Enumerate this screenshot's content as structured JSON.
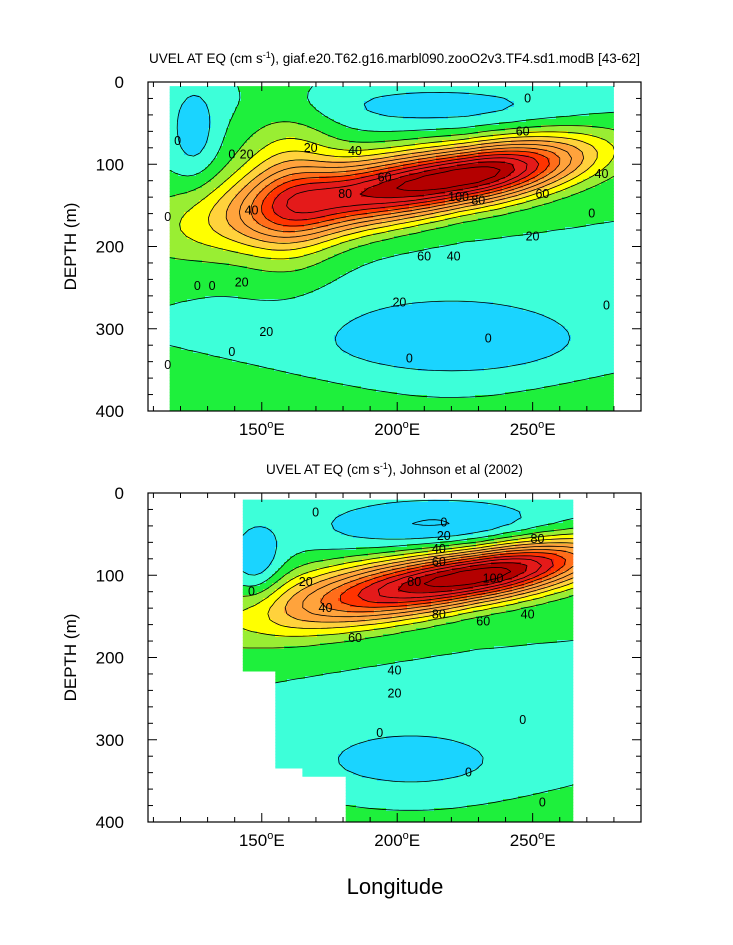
{
  "figure": {
    "xlabel": "Longitude"
  },
  "palette": [
    {
      "level": "-20..-10",
      "color": "#1ad4ff"
    },
    {
      "level": "-10..0",
      "color": "#3dffd9"
    },
    {
      "level": "0..10",
      "color": "#1ef03c"
    },
    {
      "level": "10..20",
      "color": "#99ee33"
    },
    {
      "level": "20..30",
      "color": "#ffff00"
    },
    {
      "level": "30..40",
      "color": "#ffd23c"
    },
    {
      "level": "40..60",
      "color": "#ffa33c"
    },
    {
      "level": "60..70",
      "color": "#ff6d1a"
    },
    {
      "level": "70..80",
      "color": "#ff3300"
    },
    {
      "level": "80..100",
      "color": "#e41a1a"
    },
    {
      "level": "100..120",
      "color": "#b40000"
    }
  ],
  "chart_data": [
    {
      "type": "contour",
      "title_prefix": "UVEL AT EQ (cm s",
      "title_exp": "-1",
      "title_suffix": "), giaf.e20.T62.g16.marbl090.zooO2v3.TF4.sd1.modB [43-62]",
      "xlabel": "",
      "ylabel": "DEPTH (m)",
      "xlim": [
        108,
        290
      ],
      "ylim": [
        400,
        0
      ],
      "x_ticks": [
        150,
        200,
        250
      ],
      "x_tick_labels": [
        "150°E",
        "200°E",
        "250°E"
      ],
      "y_ticks": [
        0,
        100,
        200,
        300,
        400
      ],
      "y_tick_labels": [
        "0",
        "100",
        "200",
        "300",
        "400"
      ],
      "data_x_range": [
        116,
        280
      ],
      "data_y_range": [
        5,
        400
      ],
      "contour_labels": [
        "0",
        "0",
        "0",
        "0",
        "0",
        "0",
        "0",
        "0",
        "0",
        "0",
        "0",
        "0",
        "20",
        "20",
        "20",
        "20",
        "20",
        "20",
        "40",
        "40",
        "40",
        "40",
        "60",
        "60",
        "60",
        "60",
        "80",
        "80",
        "100"
      ],
      "core": {
        "x": 225,
        "depth": 115,
        "max": 110
      }
    },
    {
      "type": "contour",
      "title_prefix": "UVEL AT EQ (cm s",
      "title_exp": "-1",
      "title_suffix": "), Johnson et al (2002)",
      "xlabel": "Longitude",
      "ylabel": "DEPTH (m)",
      "xlim": [
        108,
        290
      ],
      "ylim": [
        400,
        0
      ],
      "x_ticks": [
        150,
        200,
        250
      ],
      "x_tick_labels": [
        "150°E",
        "200°E",
        "250°E"
      ],
      "y_ticks": [
        0,
        100,
        200,
        300,
        400
      ],
      "y_tick_labels": [
        "0",
        "100",
        "200",
        "300",
        "400"
      ],
      "data_x_range": [
        143,
        265
      ],
      "data_y_range": [
        8,
        400
      ],
      "contour_labels": [
        "0",
        "0",
        "0",
        "0",
        "0",
        "0",
        "0",
        "20",
        "20",
        "20",
        "40",
        "40",
        "40",
        "40",
        "60",
        "60",
        "60",
        "80",
        "80",
        "80",
        "100"
      ],
      "core": {
        "x": 230,
        "depth": 100,
        "max": 110
      }
    }
  ]
}
